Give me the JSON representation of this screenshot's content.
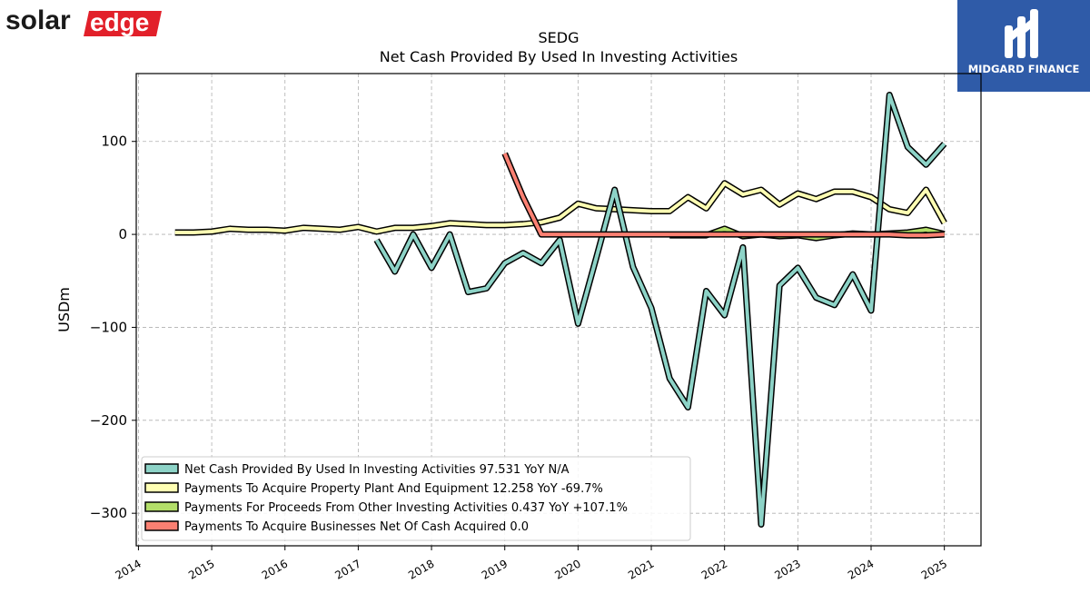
{
  "logos": {
    "left_text_a": "solar",
    "left_text_b": "edge",
    "right_text": "MIDGARD FINANCE"
  },
  "colors": {
    "net_cash": "#8dd3c7",
    "ppe": "#ffffb3",
    "other": "#b3de69",
    "businesses": "#fb8072",
    "solaredge_red": "#e2202a",
    "midgard_blue": "#2f5ba8"
  },
  "chart_data": {
    "type": "line",
    "title": "SEDG",
    "subtitle": "Net Cash Provided By Used In Investing Activities",
    "xlabel": "",
    "ylabel": "USDm",
    "xlim": [
      2013.97,
      2025.5
    ],
    "ylim": [
      -335,
      173
    ],
    "grid": true,
    "legend_position": "lower-left",
    "x_ticks": [
      "2014",
      "2015",
      "2016",
      "2017",
      "2018",
      "2019",
      "2020",
      "2021",
      "2022",
      "2023",
      "2024",
      "2025"
    ],
    "y_ticks": [
      {
        "value": 100,
        "label": "100"
      },
      {
        "value": 0,
        "label": "0"
      },
      {
        "value": -100,
        "label": "−100"
      },
      {
        "value": -200,
        "label": "−200"
      },
      {
        "value": -300,
        "label": "−300"
      }
    ],
    "series": [
      {
        "name": "Net Cash Provided By Used In Investing Activities  97.531 YoY N/A",
        "color": "#8dd3c7",
        "x": [
          2017.25,
          2017.5,
          2017.75,
          2018.0,
          2018.25,
          2018.5,
          2018.75,
          2019.0,
          2019.25,
          2019.5,
          2019.75,
          2020.0,
          2020.25,
          2020.5,
          2020.75,
          2021.0,
          2021.25,
          2021.5,
          2021.75,
          2022.0,
          2022.25,
          2022.5,
          2022.75,
          2023.0,
          2023.25,
          2023.5,
          2023.75,
          2024.0,
          2024.25,
          2024.5,
          2024.75,
          2025.0
        ],
        "y": [
          -6,
          -40,
          0,
          -36,
          0,
          -62,
          -58,
          -31,
          -20,
          -31,
          -6,
          -96,
          -25,
          48,
          -35,
          -79,
          -155,
          -186,
          -61,
          -87,
          -14,
          -312,
          -55,
          -36,
          -68,
          -76,
          -43,
          -82,
          150,
          94,
          75,
          97.5
        ]
      },
      {
        "name": "Payments To Acquire Property Plant And Equipment  12.258 YoY -69.7%",
        "color": "#ffffb3",
        "x": [
          2014.5,
          2014.75,
          2015.0,
          2015.25,
          2015.5,
          2015.75,
          2016.0,
          2016.25,
          2016.5,
          2016.75,
          2017.0,
          2017.25,
          2017.5,
          2017.75,
          2018.0,
          2018.25,
          2018.5,
          2018.75,
          2019.0,
          2019.25,
          2019.5,
          2019.75,
          2020.0,
          2020.25,
          2020.5,
          2020.75,
          2021.0,
          2021.25,
          2021.5,
          2021.75,
          2022.0,
          2022.25,
          2022.5,
          2022.75,
          2023.0,
          2023.25,
          2023.5,
          2023.75,
          2024.0,
          2024.25,
          2024.5,
          2024.75,
          2025.0
        ],
        "y": [
          2,
          2,
          3,
          6,
          5,
          5,
          4,
          7,
          6,
          5,
          8,
          3,
          7,
          7,
          9,
          12,
          11,
          10,
          10,
          11,
          13,
          18,
          33,
          28,
          27,
          26,
          25,
          25,
          40,
          28,
          55,
          43,
          48,
          32,
          44,
          38,
          46,
          46,
          40,
          27,
          23,
          48,
          12.3
        ]
      },
      {
        "name": "Payments For Proceeds From Other Investing Activities  0.437 YoY +107.1%",
        "color": "#b3de69",
        "x": [
          2021.25,
          2021.5,
          2021.75,
          2022.0,
          2022.25,
          2022.5,
          2022.75,
          2023.0,
          2023.25,
          2023.5,
          2023.75,
          2024.0,
          2024.25,
          2024.5,
          2024.75,
          2025.0
        ],
        "y": [
          -1,
          -1,
          -1,
          6,
          -2,
          0,
          -2,
          -1,
          -4,
          -1,
          1,
          0,
          1,
          2,
          5,
          0.4
        ]
      },
      {
        "name": "Payments To Acquire Businesses Net Of Cash Acquired  0.0",
        "color": "#fb8072",
        "x": [
          2019.0,
          2019.25,
          2019.5,
          2019.75,
          2020.0,
          2020.25,
          2020.5,
          2020.75,
          2021.0,
          2021.25,
          2021.5,
          2021.75,
          2022.0,
          2022.25,
          2022.5,
          2022.75,
          2023.0,
          2023.25,
          2023.5,
          2023.75,
          2024.0,
          2024.25,
          2024.5,
          2024.75,
          2025.0
        ],
        "y": [
          87,
          40,
          0,
          0,
          0,
          0,
          0,
          0,
          0,
          0,
          0,
          0,
          0,
          0,
          0,
          0,
          0,
          0,
          0,
          0,
          0,
          0,
          -1,
          -1,
          0
        ]
      }
    ]
  }
}
